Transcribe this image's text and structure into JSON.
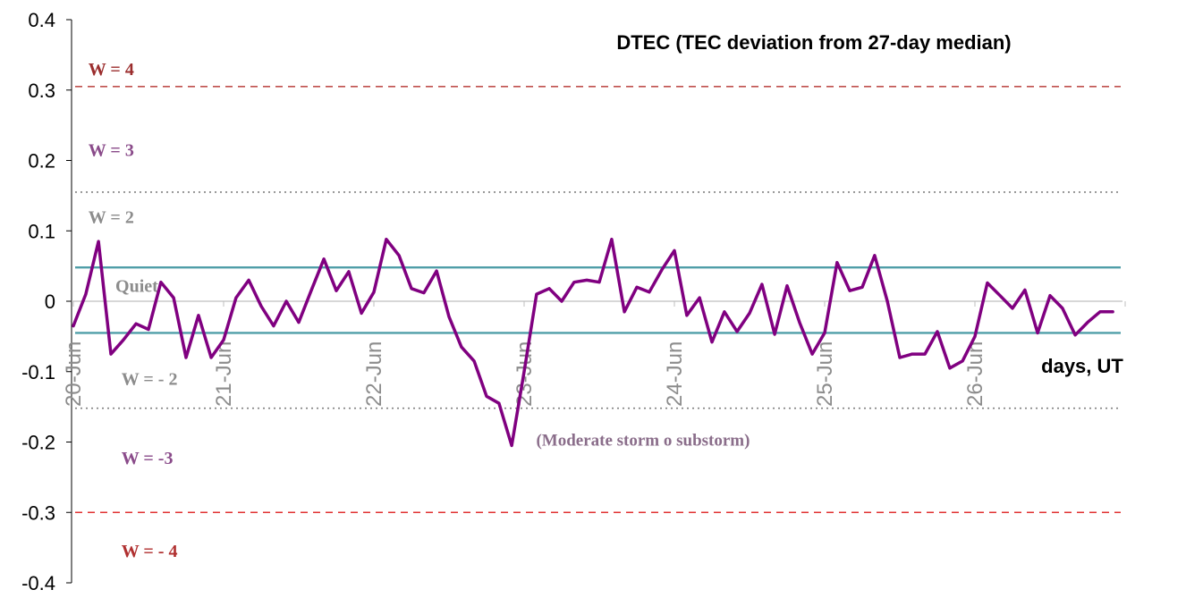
{
  "chart_data": {
    "type": "line",
    "title": "DTEC (TEC deviation from 27-day median)",
    "xlabel": "days, UT",
    "ylabel": "",
    "ylim": [
      -0.4,
      0.4
    ],
    "yticks": [
      "0.4",
      "0.3",
      "0.2",
      "0.1",
      "0",
      "-0.1",
      "-0.2",
      "-0.3",
      "-0.4"
    ],
    "ytick_values": [
      0.4,
      0.3,
      0.2,
      0.1,
      0,
      -0.1,
      -0.2,
      -0.3,
      -0.4
    ],
    "xlim": [
      0,
      7.0
    ],
    "x_tick_labels": [
      "20-Jun",
      "21-Jun",
      "22-Jun",
      "23-Jun",
      "24-Jun",
      "25-Jun",
      "26-Jun"
    ],
    "x_tick_values": [
      0,
      1,
      2,
      3,
      4,
      5,
      6
    ],
    "series": [
      {
        "color": "#800080",
        "x": [
          0.0,
          0.083,
          0.167,
          0.25,
          0.333,
          0.417,
          0.5,
          0.583,
          0.667,
          0.75,
          0.833,
          0.917,
          1.0,
          1.083,
          1.167,
          1.25,
          1.333,
          1.417,
          1.5,
          1.583,
          1.667,
          1.75,
          1.833,
          1.917,
          2.0,
          2.083,
          2.167,
          2.25,
          2.333,
          2.417,
          2.5,
          2.583,
          2.667,
          2.75,
          2.833,
          2.917,
          3.0,
          3.083,
          3.167,
          3.25,
          3.333,
          3.417,
          3.5,
          3.583,
          3.667,
          3.75,
          3.833,
          3.917,
          4.0,
          4.083,
          4.167,
          4.25,
          4.333,
          4.417,
          4.5,
          4.583,
          4.667,
          4.75,
          4.833,
          4.917,
          5.0,
          5.083,
          5.167,
          5.25,
          5.333,
          5.417,
          5.5,
          5.583,
          5.667,
          5.75,
          5.833,
          5.917,
          6.0,
          6.083,
          6.167,
          6.25,
          6.333,
          6.417,
          6.5,
          6.583,
          6.667,
          6.75,
          6.833,
          6.917
        ],
        "values": [
          -0.035,
          0.01,
          0.085,
          -0.075,
          -0.055,
          -0.032,
          -0.04,
          0.027,
          0.005,
          -0.08,
          -0.02,
          -0.08,
          -0.055,
          0.005,
          0.03,
          -0.007,
          -0.035,
          0.0,
          -0.03,
          0.015,
          0.06,
          0.015,
          0.042,
          -0.017,
          0.013,
          0.088,
          0.065,
          0.018,
          0.012,
          0.043,
          -0.022,
          -0.065,
          -0.085,
          -0.135,
          -0.145,
          -0.205,
          -0.1,
          0.01,
          0.018,
          0.0,
          0.027,
          0.03,
          0.027,
          0.088,
          -0.015,
          0.02,
          0.013,
          0.045,
          0.072,
          -0.02,
          0.005,
          -0.058,
          -0.015,
          -0.043,
          -0.017,
          0.024,
          -0.047,
          0.022,
          -0.03,
          -0.075,
          -0.045,
          0.055,
          0.015,
          0.02,
          0.065,
          0.0,
          -0.08,
          -0.075,
          -0.075,
          -0.043,
          -0.095,
          -0.085,
          -0.05,
          0.026,
          0.008,
          -0.01,
          0.016,
          -0.045,
          0.008,
          -0.01,
          -0.048,
          -0.03,
          -0.015,
          -0.015
        ]
      }
    ],
    "reference_lines": [
      {
        "y": 0.305,
        "style": "dashed",
        "color": "#c0504d"
      },
      {
        "y": 0.155,
        "style": "dotted",
        "color": "#808080"
      },
      {
        "y": 0.048,
        "style": "solid",
        "color": "#4f9ea8"
      },
      {
        "y": -0.045,
        "style": "solid",
        "color": "#4f9ea8"
      },
      {
        "y": -0.152,
        "style": "dotted",
        "color": "#808080"
      },
      {
        "y": -0.3,
        "style": "dashed",
        "color": "#e03030"
      }
    ],
    "zone_labels": [
      {
        "text": "W = 4",
        "y": 0.33,
        "x": 0.1,
        "color": "#9b2d2d"
      },
      {
        "text": "W = 3",
        "y": 0.215,
        "x": 0.1,
        "color": "#8a4b8a"
      },
      {
        "text": "W = 2",
        "y": 0.12,
        "x": 0.1,
        "color": "#8c8c8c"
      },
      {
        "text": "Quiet",
        "y": 0.022,
        "x": 0.28,
        "color": "#8c8c8c"
      },
      {
        "text": "W = - 2",
        "y": -0.11,
        "x": 0.32,
        "color": "#8c8c8c"
      },
      {
        "text": "W = -3",
        "y": -0.222,
        "x": 0.32,
        "color": "#8a4b8a"
      },
      {
        "text": "W = - 4",
        "y": -0.354,
        "x": 0.32,
        "color": "#b03030"
      }
    ],
    "annotations": [
      {
        "text": "(Moderate storm o substorm)",
        "x": 3.08,
        "y": -0.196
      }
    ],
    "grid": false,
    "legend": "none"
  }
}
